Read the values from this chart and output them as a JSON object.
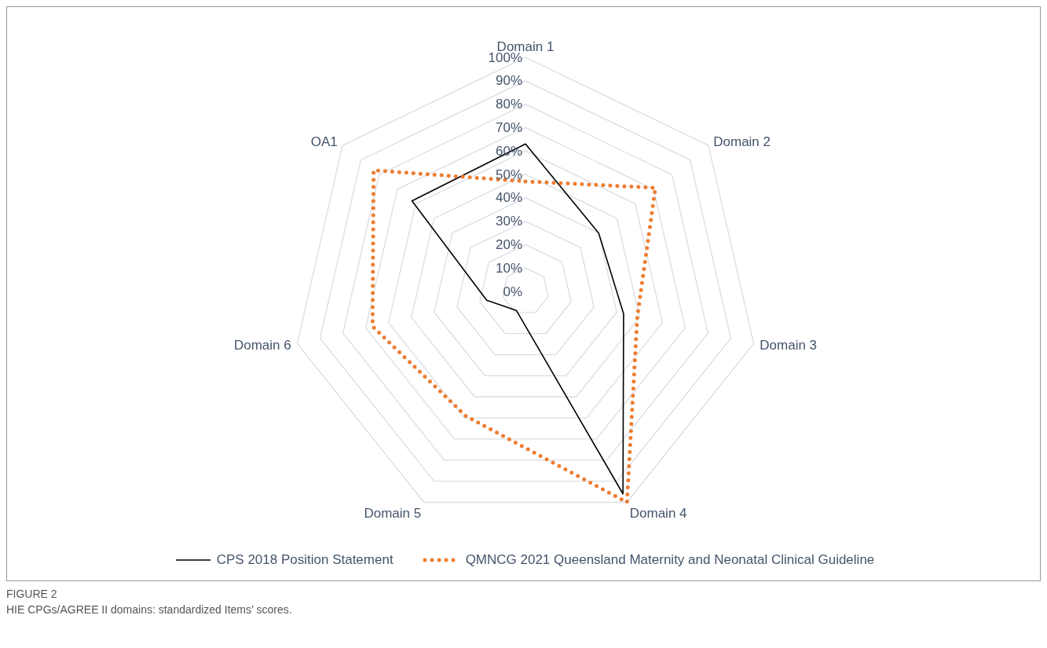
{
  "chart_data": {
    "type": "radar",
    "categories": [
      "Domain 1",
      "Domain 2",
      "Domain 3",
      "Domain 4",
      "Domain 5",
      "Domain 6",
      "OA1"
    ],
    "series": [
      {
        "name": "CPS 2018 Position Statement",
        "color": "#000000",
        "line_style": "solid",
        "values": [
          63,
          40,
          43,
          96,
          9,
          17,
          62
        ]
      },
      {
        "name": "QMNCG 2021 Queensland Maternity and Neonatal Clinical Guideline",
        "color": "#ed7d31",
        "line_style": "dotted",
        "values": [
          47,
          71,
          49,
          100,
          59,
          67,
          83
        ]
      }
    ],
    "ylim": [
      0,
      100
    ],
    "yticks": [
      {
        "value": 0,
        "label": "0%"
      },
      {
        "value": 10,
        "label": "10%"
      },
      {
        "value": 20,
        "label": "20%"
      },
      {
        "value": 30,
        "label": "30%"
      },
      {
        "value": 40,
        "label": "40%"
      },
      {
        "value": 50,
        "label": "50%"
      },
      {
        "value": 60,
        "label": "60%"
      },
      {
        "value": 70,
        "label": "70%"
      },
      {
        "value": 80,
        "label": "80%"
      },
      {
        "value": 90,
        "label": "90%"
      },
      {
        "value": 100,
        "label": "100%"
      }
    ],
    "grid": true,
    "legend": "bottom",
    "annotations": [
      "FIGURE 2",
      "HIE CPGs/AGREE II domains: standardized Items’ scores."
    ]
  }
}
